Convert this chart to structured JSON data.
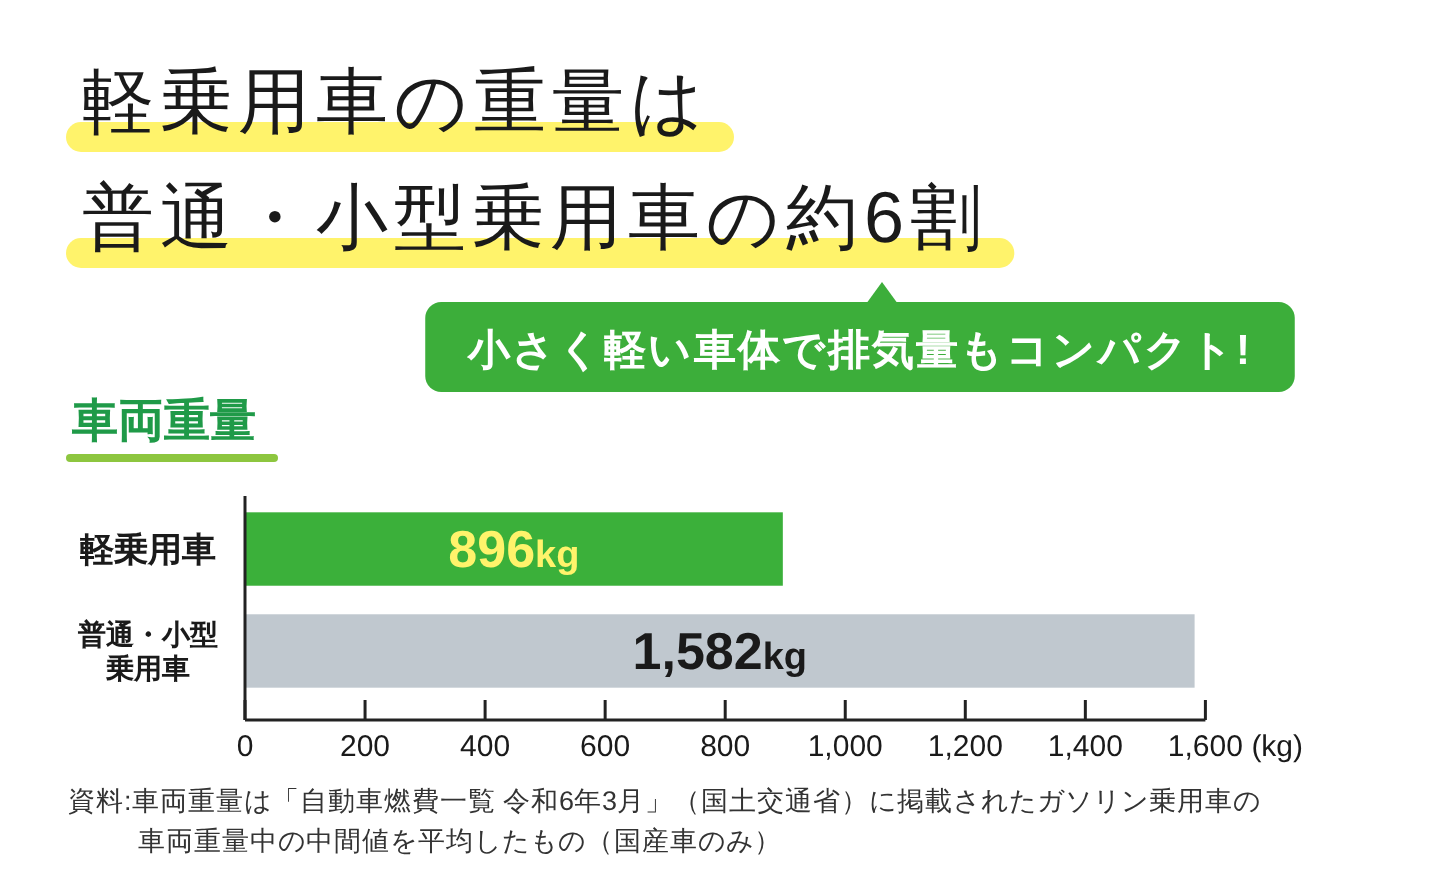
{
  "chart_data": {
    "type": "bar",
    "orientation": "horizontal",
    "title": "軽乗用車の重量は普通・小型乗用車の約6割",
    "subtitle": "小さく軽い車体で排気量もコンパクト!",
    "categories": [
      "軽乗用車",
      "普通・小型乗用車"
    ],
    "values": [
      896,
      1582
    ],
    "colors": [
      "#3bb03a",
      "#c0c8cf"
    ],
    "value_labels": [
      "896kg",
      "1,582kg"
    ],
    "xlim": [
      0,
      1600
    ],
    "xticks": [
      0,
      200,
      400,
      600,
      800,
      {
        "value": 1000,
        "label": "1,000"
      },
      {
        "value": 1200,
        "label": "1,200"
      },
      {
        "value": 1400,
        "label": "1,400"
      },
      {
        "value": 1600,
        "label": "1,600"
      }
    ],
    "xlabel": "(kg)",
    "annotations": [
      "車両重量",
      "資料:車両重量は「自動車燃費一覧 令和6年3月」（国土交通省）に掲載されたガソリン乗用車の車両重量中の中間値を平均したもの（国産車のみ）"
    ]
  }
}
